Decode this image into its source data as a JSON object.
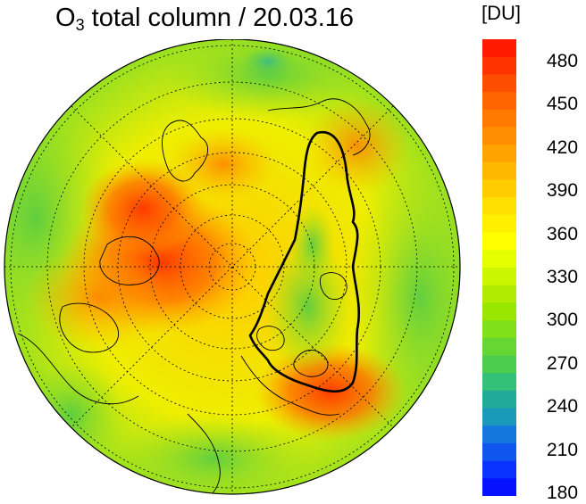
{
  "title": {
    "species": "O",
    "subscript": "3",
    "text": " total column / 20.03.16"
  },
  "colorbar": {
    "unit": "[DU]",
    "ticks": [
      "480",
      "450",
      "420",
      "390",
      "360",
      "330",
      "300",
      "270",
      "240",
      "210",
      "180"
    ],
    "colors": [
      "#ff1a00",
      "#ff3300",
      "#ff4d00",
      "#ff6600",
      "#ff7a00",
      "#ff8f00",
      "#ffa300",
      "#ffb800",
      "#ffcc00",
      "#ffe000",
      "#fff000",
      "#ffff00",
      "#e6ff00",
      "#ccf500",
      "#b3eb00",
      "#99e600",
      "#80e01a",
      "#66d633",
      "#4dcc4d",
      "#33c077",
      "#22aa99",
      "#1a99bb",
      "#1477dd",
      "#0f55ee",
      "#0a33ff",
      "#0511ff"
    ]
  },
  "map": {
    "projection": "north polar stereographic",
    "colors": {
      "high": "#ff4400",
      "mid": "#ffcc00",
      "low": "#88dd22",
      "vortex_edge": "#000000"
    }
  }
}
